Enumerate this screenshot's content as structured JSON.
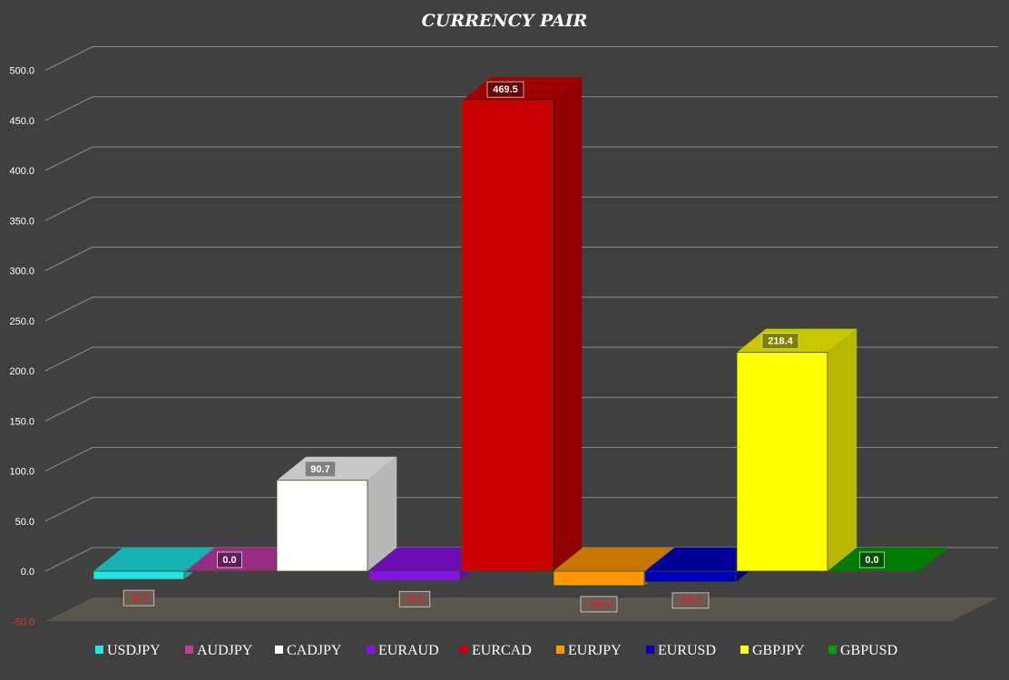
{
  "chart_data": {
    "type": "bar",
    "title": "CURRENCY PAIR",
    "style": "3d",
    "ylim": [
      -50,
      500
    ],
    "ytick_step": 50,
    "ytick_labels": [
      "-50.0",
      "0.0",
      "50.0",
      "100.0",
      "150.0",
      "200.0",
      "250.0",
      "300.0",
      "350.0",
      "400.0",
      "450.0",
      "500.0"
    ],
    "grid": true,
    "legend_position": "bottom",
    "categories": [
      "USDJPY",
      "AUDJPY",
      "CADJPY",
      "EURAUD",
      "EURCAD",
      "EURJPY",
      "EURUSD",
      "GBPJPY",
      "GBPUSD"
    ],
    "values": [
      -8.2,
      0.0,
      90.7,
      -9.3,
      469.5,
      -14.4,
      -10.7,
      218.4,
      0.0
    ],
    "value_labels": [
      "-8.2",
      "0.0",
      "90.7",
      "-9.3",
      "469.5",
      "-14.4",
      "-10.7",
      "218.4",
      "0.0"
    ],
    "colors": [
      "#1ee6e6",
      "#c03aa8",
      "#ffffff",
      "#8a10e8",
      "#cc0000",
      "#ff9900",
      "#0000c0",
      "#ffff00",
      "#00a000"
    ]
  }
}
